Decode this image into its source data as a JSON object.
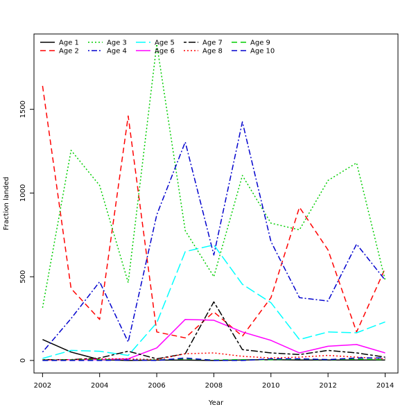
{
  "chart_data": {
    "type": "line",
    "title": "",
    "xlabel": "Year",
    "ylabel": "Fraction landed",
    "xlim": [
      2001.7,
      2014.45
    ],
    "ylim": [
      -75,
      1950
    ],
    "xticks": [
      2002,
      2004,
      2006,
      2008,
      2010,
      2012,
      2014
    ],
    "yticks": [
      0,
      500,
      1000,
      1500
    ],
    "grid": false,
    "legend_position": "top-left",
    "x": [
      2002,
      2003,
      2004,
      2005,
      2006,
      2007,
      2008,
      2009,
      2010,
      2011,
      2012,
      2013,
      2014
    ],
    "series": [
      {
        "name": "Age 1",
        "color": "#000000",
        "dash": "solid",
        "values": [
          125,
          50,
          5,
          0,
          2,
          2,
          0,
          3,
          5,
          3,
          3,
          3,
          3
        ]
      },
      {
        "name": "Age 2",
        "color": "#ff0000",
        "dash": "dashed",
        "values": [
          1640,
          430,
          245,
          1460,
          170,
          135,
          290,
          145,
          375,
          915,
          660,
          170,
          550
        ]
      },
      {
        "name": "Age 3",
        "color": "#00cd00",
        "dash": "dotted",
        "values": [
          315,
          1255,
          1045,
          465,
          1890,
          775,
          500,
          1105,
          820,
          780,
          1075,
          1180,
          480
        ]
      },
      {
        "name": "Age 4",
        "color": "#0000cd",
        "dash": "dotdash",
        "values": [
          50,
          250,
          470,
          110,
          870,
          1305,
          630,
          1425,
          710,
          375,
          355,
          695,
          480
        ]
      },
      {
        "name": "Age 5",
        "color": "#00ffff",
        "dash": "longdash",
        "values": [
          12,
          60,
          55,
          30,
          225,
          650,
          690,
          455,
          345,
          125,
          170,
          165,
          230
        ]
      },
      {
        "name": "Age 6",
        "color": "#ff00ff",
        "dash": "solid",
        "values": [
          3,
          5,
          5,
          10,
          75,
          245,
          240,
          170,
          120,
          45,
          85,
          95,
          45
        ]
      },
      {
        "name": "Age 7",
        "color": "#000000",
        "dash": "twodash",
        "values": [
          5,
          5,
          15,
          55,
          10,
          40,
          350,
          65,
          45,
          35,
          60,
          45,
          20
        ]
      },
      {
        "name": "Age 8",
        "color": "#ff0000",
        "dash": "dotted",
        "values": [
          5,
          5,
          10,
          10,
          5,
          40,
          45,
          25,
          15,
          20,
          30,
          20,
          10
        ]
      },
      {
        "name": "Age 9",
        "color": "#00cd00",
        "dash": "dashed",
        "values": [
          2,
          3,
          5,
          3,
          3,
          10,
          3,
          5,
          5,
          8,
          5,
          8,
          5
        ]
      },
      {
        "name": "Age 10",
        "color": "#0000cd",
        "dash": "dashed",
        "values": [
          0,
          0,
          0,
          3,
          0,
          15,
          0,
          0,
          10,
          10,
          5,
          15,
          15
        ]
      }
    ]
  }
}
